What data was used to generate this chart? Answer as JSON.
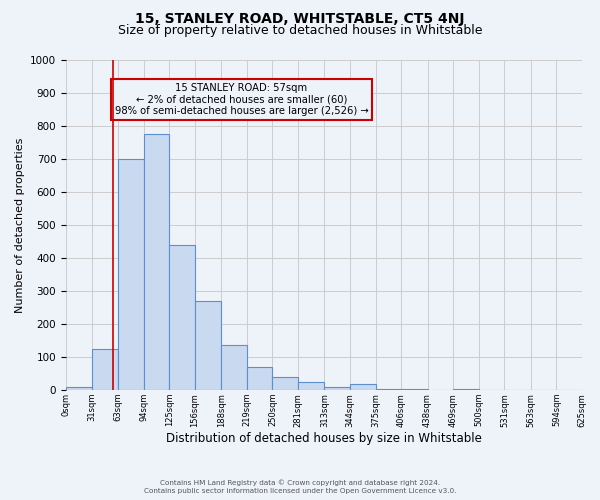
{
  "title": "15, STANLEY ROAD, WHITSTABLE, CT5 4NJ",
  "subtitle": "Size of property relative to detached houses in Whitstable",
  "xlabel": "Distribution of detached houses by size in Whitstable",
  "ylabel": "Number of detached properties",
  "bin_edges": [
    0,
    31,
    63,
    94,
    125,
    156,
    188,
    219,
    250,
    281,
    313,
    344,
    375,
    406,
    438,
    469,
    500,
    531,
    563,
    594,
    625
  ],
  "bin_counts": [
    10,
    125,
    700,
    775,
    440,
    270,
    135,
    70,
    40,
    25,
    10,
    18,
    2,
    2,
    0,
    2,
    0,
    0,
    0,
    0
  ],
  "bar_facecolor": "#c9d9f0",
  "bar_edgecolor": "#5b8fce",
  "property_line_x": 57,
  "property_line_color": "#cc0000",
  "annotation_lines": [
    "15 STANLEY ROAD: 57sqm",
    "← 2% of detached houses are smaller (60)",
    "98% of semi-detached houses are larger (2,526) →"
  ],
  "annotation_box_edgecolor": "#cc0000",
  "ylim": [
    0,
    1000
  ],
  "grid_color": "#cccccc",
  "background_color": "#eef2f9",
  "tick_labels": [
    "0sqm",
    "31sqm",
    "63sqm",
    "94sqm",
    "125sqm",
    "156sqm",
    "188sqm",
    "219sqm",
    "250sqm",
    "281sqm",
    "313sqm",
    "344sqm",
    "375sqm",
    "406sqm",
    "438sqm",
    "469sqm",
    "500sqm",
    "531sqm",
    "563sqm",
    "594sqm",
    "625sqm"
  ],
  "footer_line1": "Contains HM Land Registry data © Crown copyright and database right 2024.",
  "footer_line2": "Contains public sector information licensed under the Open Government Licence v3.0.",
  "title_fontsize": 10,
  "subtitle_fontsize": 9,
  "ylabel_fontsize": 8,
  "xlabel_fontsize": 8.5,
  "yticks": [
    0,
    100,
    200,
    300,
    400,
    500,
    600,
    700,
    800,
    900,
    1000
  ]
}
